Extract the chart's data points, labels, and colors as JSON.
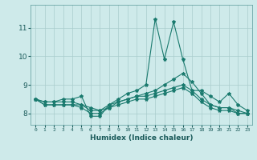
{
  "xlabel": "Humidex (Indice chaleur)",
  "ylabel": "",
  "bg_color": "#ceeaea",
  "grid_color": "#aacccc",
  "line_color": "#1a7a6e",
  "xlim": [
    -0.5,
    23.5
  ],
  "ylim": [
    7.6,
    11.8
  ],
  "yticks": [
    8,
    9,
    10,
    11
  ],
  "xticks": [
    0,
    1,
    2,
    3,
    4,
    5,
    6,
    7,
    8,
    9,
    10,
    11,
    12,
    13,
    14,
    15,
    16,
    17,
    18,
    19,
    20,
    21,
    22,
    23
  ],
  "series": [
    [
      8.5,
      8.4,
      8.4,
      8.5,
      8.5,
      8.6,
      7.9,
      7.9,
      8.3,
      8.5,
      8.7,
      8.8,
      9.0,
      11.3,
      9.9,
      11.2,
      9.9,
      8.8,
      8.8,
      8.6,
      8.4,
      8.7,
      8.3,
      8.1
    ],
    [
      8.5,
      8.4,
      8.4,
      8.4,
      8.4,
      8.3,
      8.2,
      8.1,
      8.2,
      8.4,
      8.5,
      8.6,
      8.7,
      8.8,
      9.0,
      9.2,
      9.4,
      9.1,
      8.7,
      8.3,
      8.2,
      8.2,
      8.1,
      8.0
    ],
    [
      8.5,
      8.3,
      8.3,
      8.3,
      8.3,
      8.3,
      8.1,
      8.1,
      8.3,
      8.4,
      8.5,
      8.6,
      8.6,
      8.7,
      8.8,
      8.9,
      9.0,
      8.8,
      8.5,
      8.3,
      8.2,
      8.2,
      8.0,
      8.0
    ],
    [
      8.5,
      8.3,
      8.3,
      8.3,
      8.3,
      8.2,
      8.0,
      8.0,
      8.2,
      8.3,
      8.4,
      8.5,
      8.5,
      8.6,
      8.7,
      8.8,
      8.9,
      8.7,
      8.4,
      8.2,
      8.1,
      8.1,
      8.0,
      8.0
    ]
  ]
}
